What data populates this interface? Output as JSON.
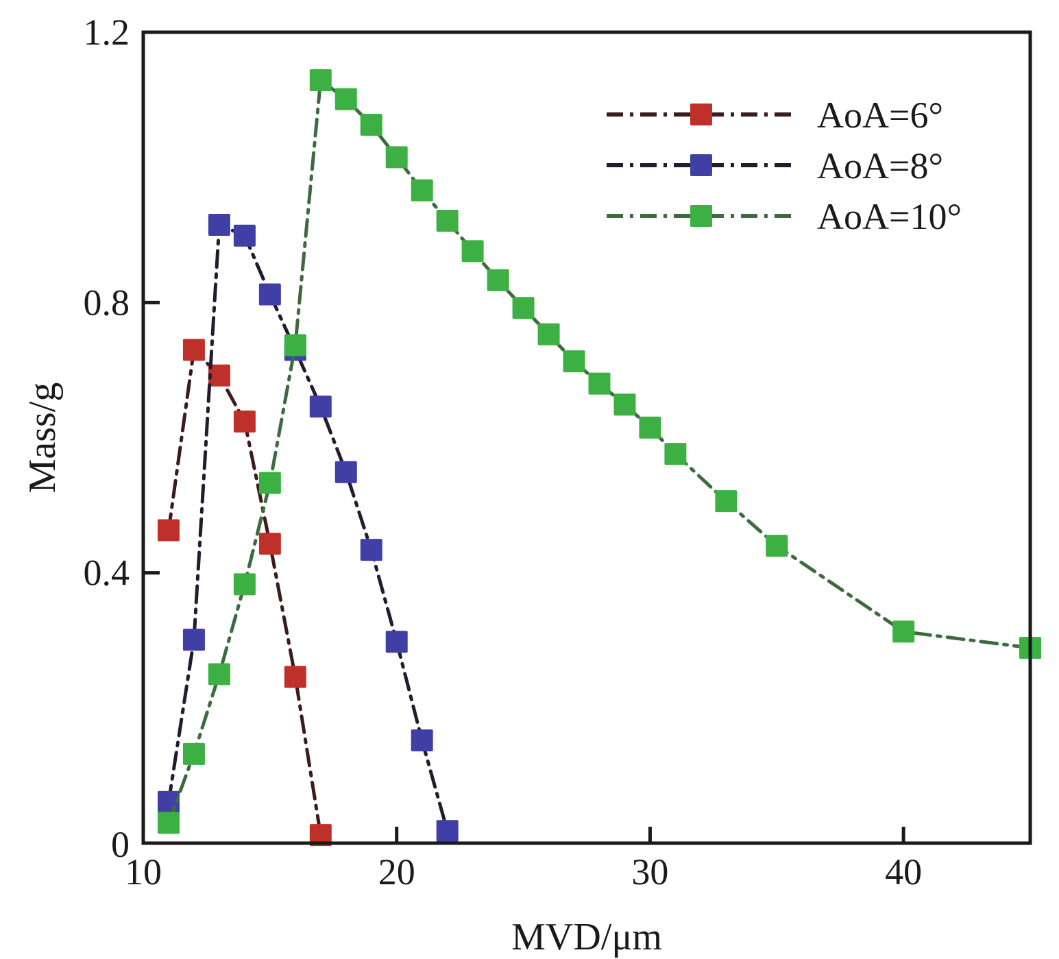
{
  "chart_data": {
    "type": "line",
    "title": "",
    "xlabel": "MVD/μm",
    "ylabel": "Mass/g",
    "xlim": [
      10,
      45
    ],
    "ylim": [
      0,
      1.2
    ],
    "xticks": [
      10,
      20,
      30,
      40
    ],
    "xtick_labels": [
      "10",
      "20",
      "30",
      "40"
    ],
    "yticks": [
      0,
      0.4,
      0.8,
      1.2
    ],
    "ytick_labels": [
      "0",
      "0.4",
      "0.8",
      "1.2"
    ],
    "grid": false,
    "legend_position": "top-right",
    "marker": "square",
    "line_style": "dash-dot",
    "series": [
      {
        "name": "AoA=6°",
        "marker_color": "#c0302a",
        "line_color": "#3a1c1c",
        "x": [
          11,
          12,
          13,
          14,
          15,
          16,
          17
        ],
        "y": [
          0.463,
          0.73,
          0.692,
          0.624,
          0.443,
          0.246,
          0.012
        ]
      },
      {
        "name": "AoA=8°",
        "marker_color": "#3f3fa6",
        "line_color": "#221c2e",
        "x": [
          11,
          12,
          13,
          14,
          15,
          16,
          17,
          18,
          19,
          20,
          21,
          22
        ],
        "y": [
          0.061,
          0.301,
          0.915,
          0.899,
          0.812,
          0.73,
          0.646,
          0.549,
          0.434,
          0.298,
          0.152,
          0.018
        ]
      },
      {
        "name": "AoA=10°",
        "marker_color": "#3cb043",
        "line_color": "#3d6b3f",
        "x": [
          11,
          12,
          13,
          14,
          15,
          16,
          17,
          18,
          19,
          20,
          21,
          22,
          23,
          24,
          25,
          26,
          27,
          28,
          29,
          30,
          31,
          33,
          35,
          40,
          45
        ],
        "y": [
          0.03,
          0.132,
          0.25,
          0.383,
          0.533,
          0.737,
          1.129,
          1.101,
          1.063,
          1.015,
          0.966,
          0.921,
          0.876,
          0.833,
          0.792,
          0.753,
          0.713,
          0.68,
          0.649,
          0.615,
          0.576,
          0.506,
          0.44,
          0.313,
          0.289
        ]
      }
    ]
  }
}
